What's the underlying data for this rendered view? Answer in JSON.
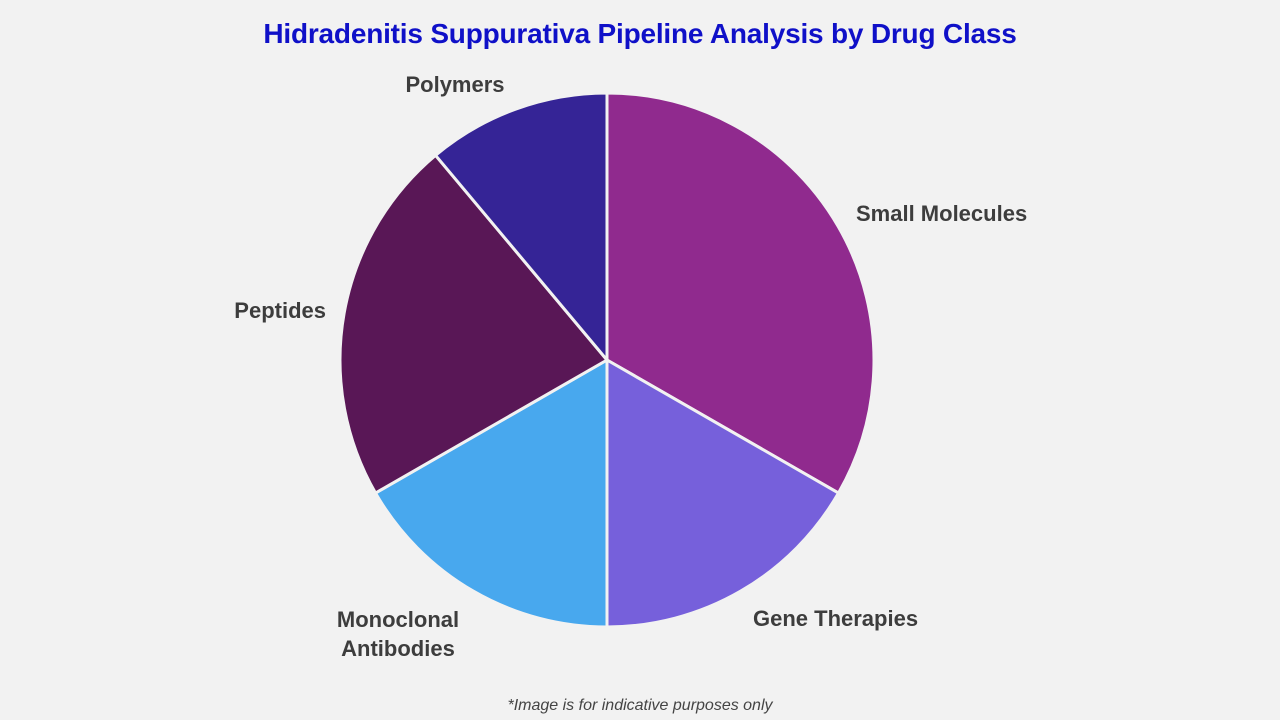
{
  "chart_data": {
    "type": "pie",
    "title": "Hidradenitis Suppurativa Pipeline Analysis by Drug Class",
    "slices": [
      {
        "label": "Small Molecules",
        "value": 33.3,
        "color": "#902a8e"
      },
      {
        "label": "Gene Therapies",
        "value": 16.7,
        "color": "#7660db"
      },
      {
        "label": "Monoclonal Antibodies",
        "value": 16.7,
        "color": "#48a8ee"
      },
      {
        "label": "Peptides",
        "value": 22.2,
        "color": "#591756"
      },
      {
        "label": "Polymers",
        "value": 11.1,
        "color": "#352496"
      }
    ],
    "start": "12 o'clock",
    "direction": "clockwise",
    "legend": "none",
    "footnote": "*Image is for indicative purposes only"
  }
}
